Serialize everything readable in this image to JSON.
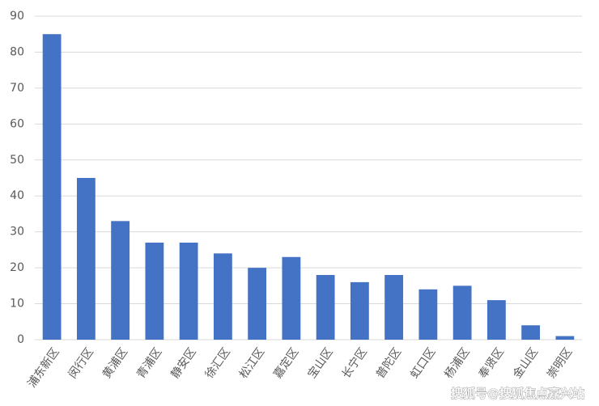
{
  "chart_data": {
    "type": "bar",
    "categories": [
      "浦东新区",
      "闵行区",
      "黄浦区",
      "青浦区",
      "静安区",
      "徐汇区",
      "松江区",
      "嘉定区",
      "宝山区",
      "长宁区",
      "普陀区",
      "虹口区",
      "杨浦区",
      "奉贤区",
      "金山区",
      "崇明区"
    ],
    "values": [
      85,
      45,
      33,
      27,
      27,
      24,
      20,
      23,
      18,
      16,
      18,
      14,
      15,
      11,
      4,
      1
    ],
    "color": "#4472c4",
    "ylim": [
      0,
      90
    ],
    "yticks": [
      0,
      10,
      20,
      30,
      40,
      50,
      60,
      70,
      80,
      90
    ],
    "grid": true
  },
  "watermark": "搜狐号@搜狐焦点嘉兴站"
}
